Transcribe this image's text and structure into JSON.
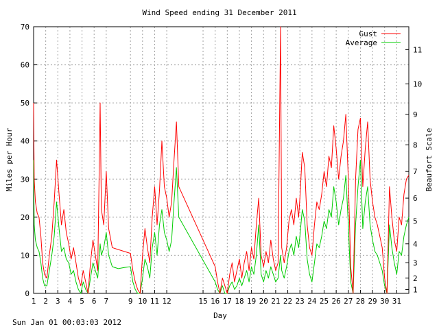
{
  "chart_data": {
    "type": "line",
    "title": "Wind Speed ending 31 December 2011",
    "xlabel": "Day",
    "ylabel": "Miles per Hour",
    "y2label": "Beaufort Scale",
    "footer": "Sun Jan 01 00:03:03 2012",
    "xlim": [
      1,
      32
    ],
    "ylim": [
      0,
      70
    ],
    "grid": true,
    "legend_position": "top-right",
    "x_ticks": [
      1,
      2,
      3,
      4,
      5,
      6,
      7,
      9,
      10,
      11,
      12,
      15,
      16,
      17,
      18,
      19,
      20,
      21,
      22,
      23,
      24,
      25,
      26,
      27,
      28,
      29,
      30,
      31
    ],
    "x_tick_labels": [
      "1",
      "2",
      "3",
      "4",
      "5",
      "6",
      "7",
      "9",
      "10",
      "11",
      "12",
      "15",
      "16",
      "17",
      "18",
      "19",
      "20",
      "21",
      "22",
      "23",
      "24",
      "25",
      "26",
      "27",
      "28",
      "29",
      "30",
      "31"
    ],
    "y_ticks": [
      0,
      10,
      20,
      30,
      40,
      50,
      60,
      70
    ],
    "beaufort_ticks": [
      {
        "label": "1",
        "mph": 1
      },
      {
        "label": "2",
        "mph": 4
      },
      {
        "label": "3",
        "mph": 8
      },
      {
        "label": "4",
        "mph": 13
      },
      {
        "label": "5",
        "mph": 19
      },
      {
        "label": "6",
        "mph": 25
      },
      {
        "label": "7",
        "mph": 32
      },
      {
        "label": "8",
        "mph": 39
      },
      {
        "label": "9",
        "mph": 47
      },
      {
        "label": "10",
        "mph": 55
      },
      {
        "label": "11",
        "mph": 64
      }
    ],
    "series": [
      {
        "name": "Gust",
        "color": "#ff0000",
        "points": [
          [
            1.0,
            50
          ],
          [
            1.05,
            30
          ],
          [
            1.15,
            24
          ],
          [
            1.3,
            21
          ],
          [
            1.45,
            20
          ],
          [
            1.6,
            15
          ],
          [
            1.75,
            8
          ],
          [
            1.9,
            5
          ],
          [
            2.1,
            4
          ],
          [
            2.3,
            10
          ],
          [
            2.5,
            15
          ],
          [
            2.7,
            24
          ],
          [
            2.9,
            35
          ],
          [
            3.1,
            26
          ],
          [
            3.3,
            18
          ],
          [
            3.5,
            22
          ],
          [
            3.7,
            16
          ],
          [
            3.9,
            13
          ],
          [
            4.1,
            9
          ],
          [
            4.3,
            12
          ],
          [
            4.5,
            8
          ],
          [
            4.7,
            4
          ],
          [
            4.9,
            2
          ],
          [
            5.1,
            6
          ],
          [
            5.3,
            3
          ],
          [
            5.5,
            0
          ],
          [
            5.7,
            8
          ],
          [
            5.9,
            14
          ],
          [
            6.1,
            10
          ],
          [
            6.3,
            6
          ],
          [
            6.5,
            50
          ],
          [
            6.6,
            22
          ],
          [
            6.8,
            18
          ],
          [
            7.0,
            32
          ],
          [
            7.2,
            17
          ],
          [
            7.5,
            12
          ],
          [
            8.0,
            11.5
          ],
          [
            8.5,
            11
          ],
          [
            9.0,
            10.5
          ],
          [
            9.2,
            6
          ],
          [
            9.4,
            3
          ],
          [
            9.6,
            1
          ],
          [
            9.8,
            0
          ],
          [
            10.0,
            10
          ],
          [
            10.2,
            17
          ],
          [
            10.4,
            12
          ],
          [
            10.6,
            8
          ],
          [
            10.8,
            20
          ],
          [
            11.0,
            28
          ],
          [
            11.2,
            18
          ],
          [
            11.4,
            27
          ],
          [
            11.6,
            40
          ],
          [
            11.8,
            28
          ],
          [
            12.0,
            25
          ],
          [
            12.2,
            20
          ],
          [
            12.4,
            24
          ],
          [
            12.6,
            35
          ],
          [
            12.8,
            45
          ],
          [
            13.0,
            28
          ],
          [
            16.0,
            7
          ],
          [
            16.2,
            3
          ],
          [
            16.4,
            0
          ],
          [
            16.6,
            4
          ],
          [
            16.8,
            2
          ],
          [
            17.0,
            0
          ],
          [
            17.2,
            5
          ],
          [
            17.4,
            8
          ],
          [
            17.6,
            3
          ],
          [
            17.8,
            6
          ],
          [
            18.0,
            9
          ],
          [
            18.2,
            4
          ],
          [
            18.4,
            8
          ],
          [
            18.6,
            11
          ],
          [
            18.8,
            6
          ],
          [
            19.0,
            12
          ],
          [
            19.2,
            9
          ],
          [
            19.4,
            18
          ],
          [
            19.6,
            25
          ],
          [
            19.8,
            10
          ],
          [
            20.0,
            7
          ],
          [
            20.2,
            11
          ],
          [
            20.4,
            8
          ],
          [
            20.6,
            14
          ],
          [
            20.8,
            9
          ],
          [
            21.0,
            6
          ],
          [
            21.2,
            8
          ],
          [
            21.4,
            70
          ],
          [
            21.5,
            12
          ],
          [
            21.7,
            8
          ],
          [
            21.9,
            12
          ],
          [
            22.1,
            19
          ],
          [
            22.3,
            22
          ],
          [
            22.5,
            18
          ],
          [
            22.7,
            25
          ],
          [
            22.9,
            20
          ],
          [
            23.0,
            25
          ],
          [
            23.2,
            37
          ],
          [
            23.4,
            33
          ],
          [
            23.6,
            18
          ],
          [
            23.8,
            12
          ],
          [
            24.0,
            10
          ],
          [
            24.2,
            18
          ],
          [
            24.4,
            24
          ],
          [
            24.6,
            22
          ],
          [
            24.8,
            26
          ],
          [
            25.0,
            32
          ],
          [
            25.2,
            28
          ],
          [
            25.4,
            36
          ],
          [
            25.6,
            33
          ],
          [
            25.8,
            44
          ],
          [
            26.0,
            38
          ],
          [
            26.2,
            30
          ],
          [
            26.4,
            36
          ],
          [
            26.6,
            40
          ],
          [
            26.8,
            47
          ],
          [
            27.0,
            30
          ],
          [
            27.2,
            7
          ],
          [
            27.4,
            0
          ],
          [
            27.6,
            30
          ],
          [
            27.8,
            43
          ],
          [
            28.0,
            46
          ],
          [
            28.2,
            28
          ],
          [
            28.4,
            38
          ],
          [
            28.6,
            45
          ],
          [
            28.8,
            30
          ],
          [
            29.0,
            24
          ],
          [
            29.2,
            20
          ],
          [
            29.4,
            18
          ],
          [
            29.6,
            15
          ],
          [
            29.8,
            12
          ],
          [
            30.0,
            4
          ],
          [
            30.2,
            0
          ],
          [
            30.4,
            28
          ],
          [
            30.6,
            20
          ],
          [
            30.8,
            14
          ],
          [
            31.0,
            11
          ],
          [
            31.2,
            20
          ],
          [
            31.4,
            18
          ],
          [
            31.6,
            26
          ],
          [
            31.8,
            30
          ],
          [
            32.0,
            31
          ]
        ]
      },
      {
        "name": "Average",
        "color": "#00cc00",
        "points": [
          [
            1.0,
            35
          ],
          [
            1.05,
            18
          ],
          [
            1.15,
            14
          ],
          [
            1.3,
            12
          ],
          [
            1.45,
            11
          ],
          [
            1.6,
            8
          ],
          [
            1.75,
            4
          ],
          [
            1.9,
            2
          ],
          [
            2.1,
            2
          ],
          [
            2.3,
            6
          ],
          [
            2.5,
            10
          ],
          [
            2.7,
            15
          ],
          [
            2.9,
            24
          ],
          [
            3.1,
            17
          ],
          [
            3.3,
            11
          ],
          [
            3.5,
            12
          ],
          [
            3.7,
            9
          ],
          [
            3.9,
            8
          ],
          [
            4.1,
            5
          ],
          [
            4.3,
            6
          ],
          [
            4.5,
            3
          ],
          [
            4.7,
            1
          ],
          [
            4.9,
            0
          ],
          [
            5.1,
            3
          ],
          [
            5.3,
            1
          ],
          [
            5.5,
            0
          ],
          [
            5.7,
            4
          ],
          [
            5.9,
            8
          ],
          [
            6.1,
            6
          ],
          [
            6.3,
            4
          ],
          [
            6.5,
            13
          ],
          [
            6.6,
            10
          ],
          [
            6.8,
            12
          ],
          [
            7.0,
            16
          ],
          [
            7.2,
            10
          ],
          [
            7.5,
            7
          ],
          [
            8.0,
            6.5
          ],
          [
            8.5,
            6.8
          ],
          [
            9.0,
            7.0
          ],
          [
            9.2,
            3
          ],
          [
            9.4,
            1
          ],
          [
            9.6,
            0
          ],
          [
            9.8,
            0
          ],
          [
            10.0,
            4
          ],
          [
            10.2,
            9
          ],
          [
            10.4,
            7
          ],
          [
            10.6,
            4
          ],
          [
            10.8,
            12
          ],
          [
            11.0,
            16
          ],
          [
            11.2,
            10
          ],
          [
            11.4,
            18
          ],
          [
            11.6,
            22
          ],
          [
            11.8,
            16
          ],
          [
            12.0,
            14
          ],
          [
            12.2,
            11
          ],
          [
            12.4,
            14
          ],
          [
            12.6,
            24
          ],
          [
            12.8,
            33
          ],
          [
            13.0,
            20
          ],
          [
            16.0,
            3
          ],
          [
            16.2,
            1
          ],
          [
            16.4,
            0
          ],
          [
            16.6,
            2
          ],
          [
            16.8,
            0
          ],
          [
            17.0,
            0
          ],
          [
            17.2,
            2
          ],
          [
            17.4,
            3
          ],
          [
            17.6,
            1
          ],
          [
            17.8,
            2
          ],
          [
            18.0,
            4
          ],
          [
            18.2,
            2
          ],
          [
            18.4,
            4
          ],
          [
            18.6,
            6
          ],
          [
            18.8,
            3
          ],
          [
            19.0,
            7
          ],
          [
            19.2,
            5
          ],
          [
            19.4,
            10
          ],
          [
            19.6,
            18
          ],
          [
            19.8,
            5
          ],
          [
            20.0,
            3
          ],
          [
            20.2,
            6
          ],
          [
            20.4,
            4
          ],
          [
            20.6,
            7
          ],
          [
            20.8,
            5
          ],
          [
            21.0,
            3
          ],
          [
            21.2,
            4
          ],
          [
            21.4,
            10
          ],
          [
            21.5,
            6
          ],
          [
            21.7,
            4
          ],
          [
            21.9,
            7
          ],
          [
            22.1,
            11
          ],
          [
            22.3,
            13
          ],
          [
            22.5,
            10
          ],
          [
            22.7,
            15
          ],
          [
            22.9,
            12
          ],
          [
            23.0,
            15
          ],
          [
            23.2,
            22
          ],
          [
            23.4,
            19
          ],
          [
            23.6,
            9
          ],
          [
            23.8,
            5
          ],
          [
            24.0,
            3
          ],
          [
            24.2,
            8
          ],
          [
            24.4,
            13
          ],
          [
            24.6,
            12
          ],
          [
            24.8,
            15
          ],
          [
            25.0,
            19
          ],
          [
            25.2,
            17
          ],
          [
            25.4,
            22
          ],
          [
            25.6,
            20
          ],
          [
            25.8,
            28
          ],
          [
            26.0,
            24
          ],
          [
            26.2,
            18
          ],
          [
            26.4,
            22
          ],
          [
            26.6,
            25
          ],
          [
            26.8,
            31
          ],
          [
            27.0,
            18
          ],
          [
            27.2,
            3
          ],
          [
            27.4,
            0
          ],
          [
            27.6,
            18
          ],
          [
            27.8,
            28
          ],
          [
            28.0,
            35
          ],
          [
            28.2,
            17
          ],
          [
            28.4,
            24
          ],
          [
            28.6,
            28
          ],
          [
            28.8,
            18
          ],
          [
            29.0,
            14
          ],
          [
            29.2,
            11
          ],
          [
            29.4,
            10
          ],
          [
            29.6,
            8
          ],
          [
            29.8,
            6
          ],
          [
            30.0,
            2
          ],
          [
            30.2,
            0
          ],
          [
            30.4,
            18
          ],
          [
            30.6,
            12
          ],
          [
            30.8,
            8
          ],
          [
            31.0,
            5
          ],
          [
            31.2,
            11
          ],
          [
            31.4,
            10
          ],
          [
            31.6,
            15
          ],
          [
            31.8,
            18
          ],
          [
            32.0,
            20
          ]
        ]
      }
    ]
  }
}
